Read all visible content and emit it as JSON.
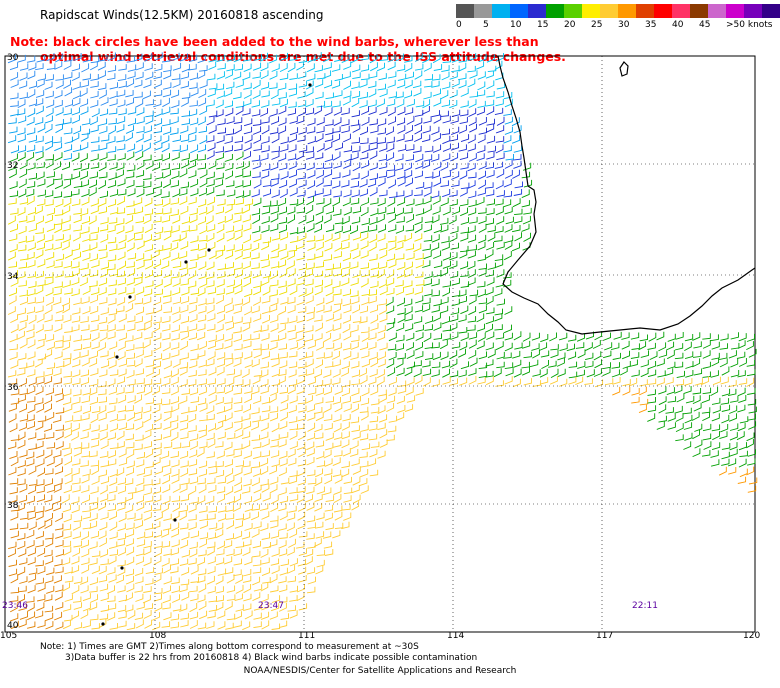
{
  "title": "Rapidscat Winds(12.5KM) 20160818 ascending",
  "note_red": {
    "line1": "Note: black circles have been added to the wind barbs, wherever less than",
    "line2": "optimal wind retrieval conditions are met due to the ISS attitude changes."
  },
  "colorbar": {
    "colors": [
      "#555555",
      "#999999",
      "#00b0f0",
      "#0066ff",
      "#2a2ad0",
      "#00a000",
      "#5ad000",
      "#ffee00",
      "#ffcc33",
      "#ff9900",
      "#e04000",
      "#ff0000",
      "#ff3366",
      "#8b3a00",
      "#cc66cc",
      "#cc00cc",
      "#7700bb",
      "#330088"
    ],
    "labels": [
      "0",
      "5",
      "10",
      "15",
      "20",
      "25",
      "30",
      "35",
      "40",
      "45",
      ">50 knots"
    ]
  },
  "lat_labels": [
    "30",
    "32",
    "34",
    "36",
    "38",
    "40"
  ],
  "lon_labels": [
    "105",
    "108",
    "111",
    "114",
    "117",
    "120"
  ],
  "time_labels": [
    "23:46",
    "23:47",
    "22:11"
  ],
  "footnotes": {
    "line1": "Note: 1) Times are GMT 2)Times along bottom correspond to measurement at ~30S",
    "line2": "3)Data buffer is 22 hrs from 20160818 4) Black wind barbs indicate possible contamination"
  },
  "credit": "NOAA/NESDIS/Center for Satellite Applications and Research"
}
